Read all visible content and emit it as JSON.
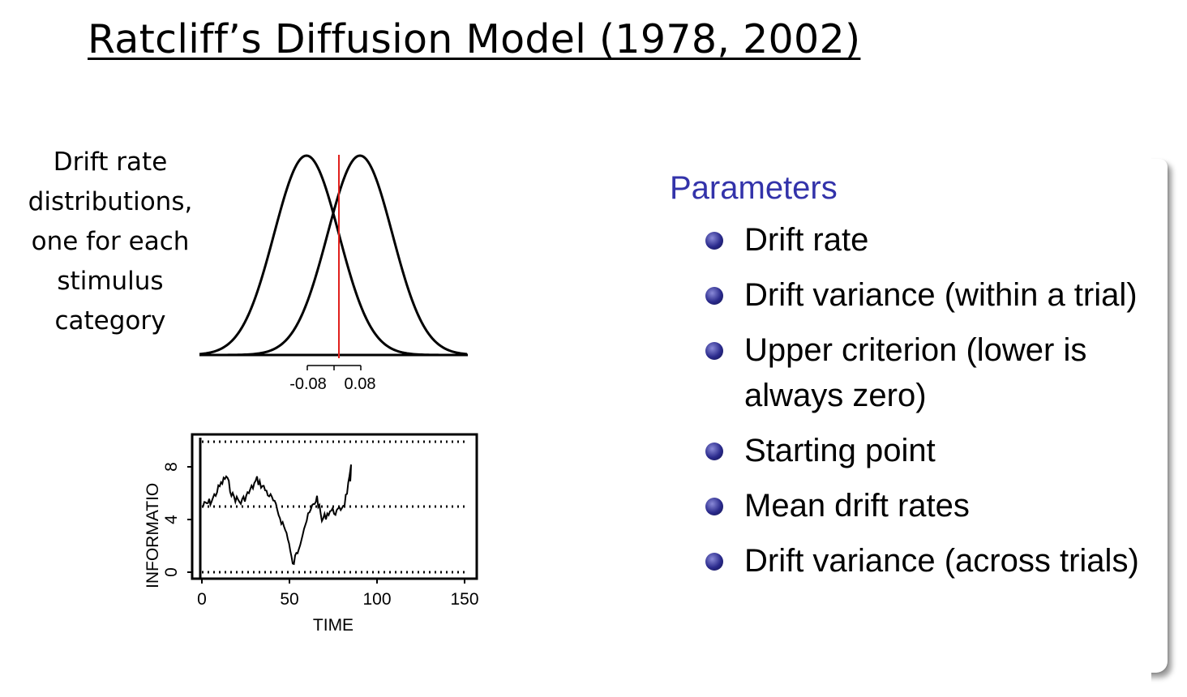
{
  "title": "Ratcliff’s Diffusion Model (1978, 2002)",
  "drift_caption_lines": [
    "Drift rate",
    "distributions,",
    "one for each",
    "stimulus",
    "category"
  ],
  "drift_axis": {
    "tick_labels": [
      "-0.08",
      "0.08"
    ]
  },
  "info_plot": {
    "xlabel": "TIME",
    "ylabel": "INFORMATIO",
    "x_ticks": [
      "0",
      "50",
      "100",
      "150"
    ],
    "y_ticks": [
      "0",
      "4",
      "8"
    ]
  },
  "parameters": {
    "heading": "Parameters",
    "items": [
      "Drift rate",
      "Drift variance (within a trial)",
      "Upper criterion (lower is always zero)",
      "Starting point",
      "Mean drift rates",
      "Drift variance (across trials)"
    ]
  },
  "colors": {
    "heading": "#3333aa",
    "criterion_line": "#e0201c",
    "bullet": "#2a2a8c"
  }
}
